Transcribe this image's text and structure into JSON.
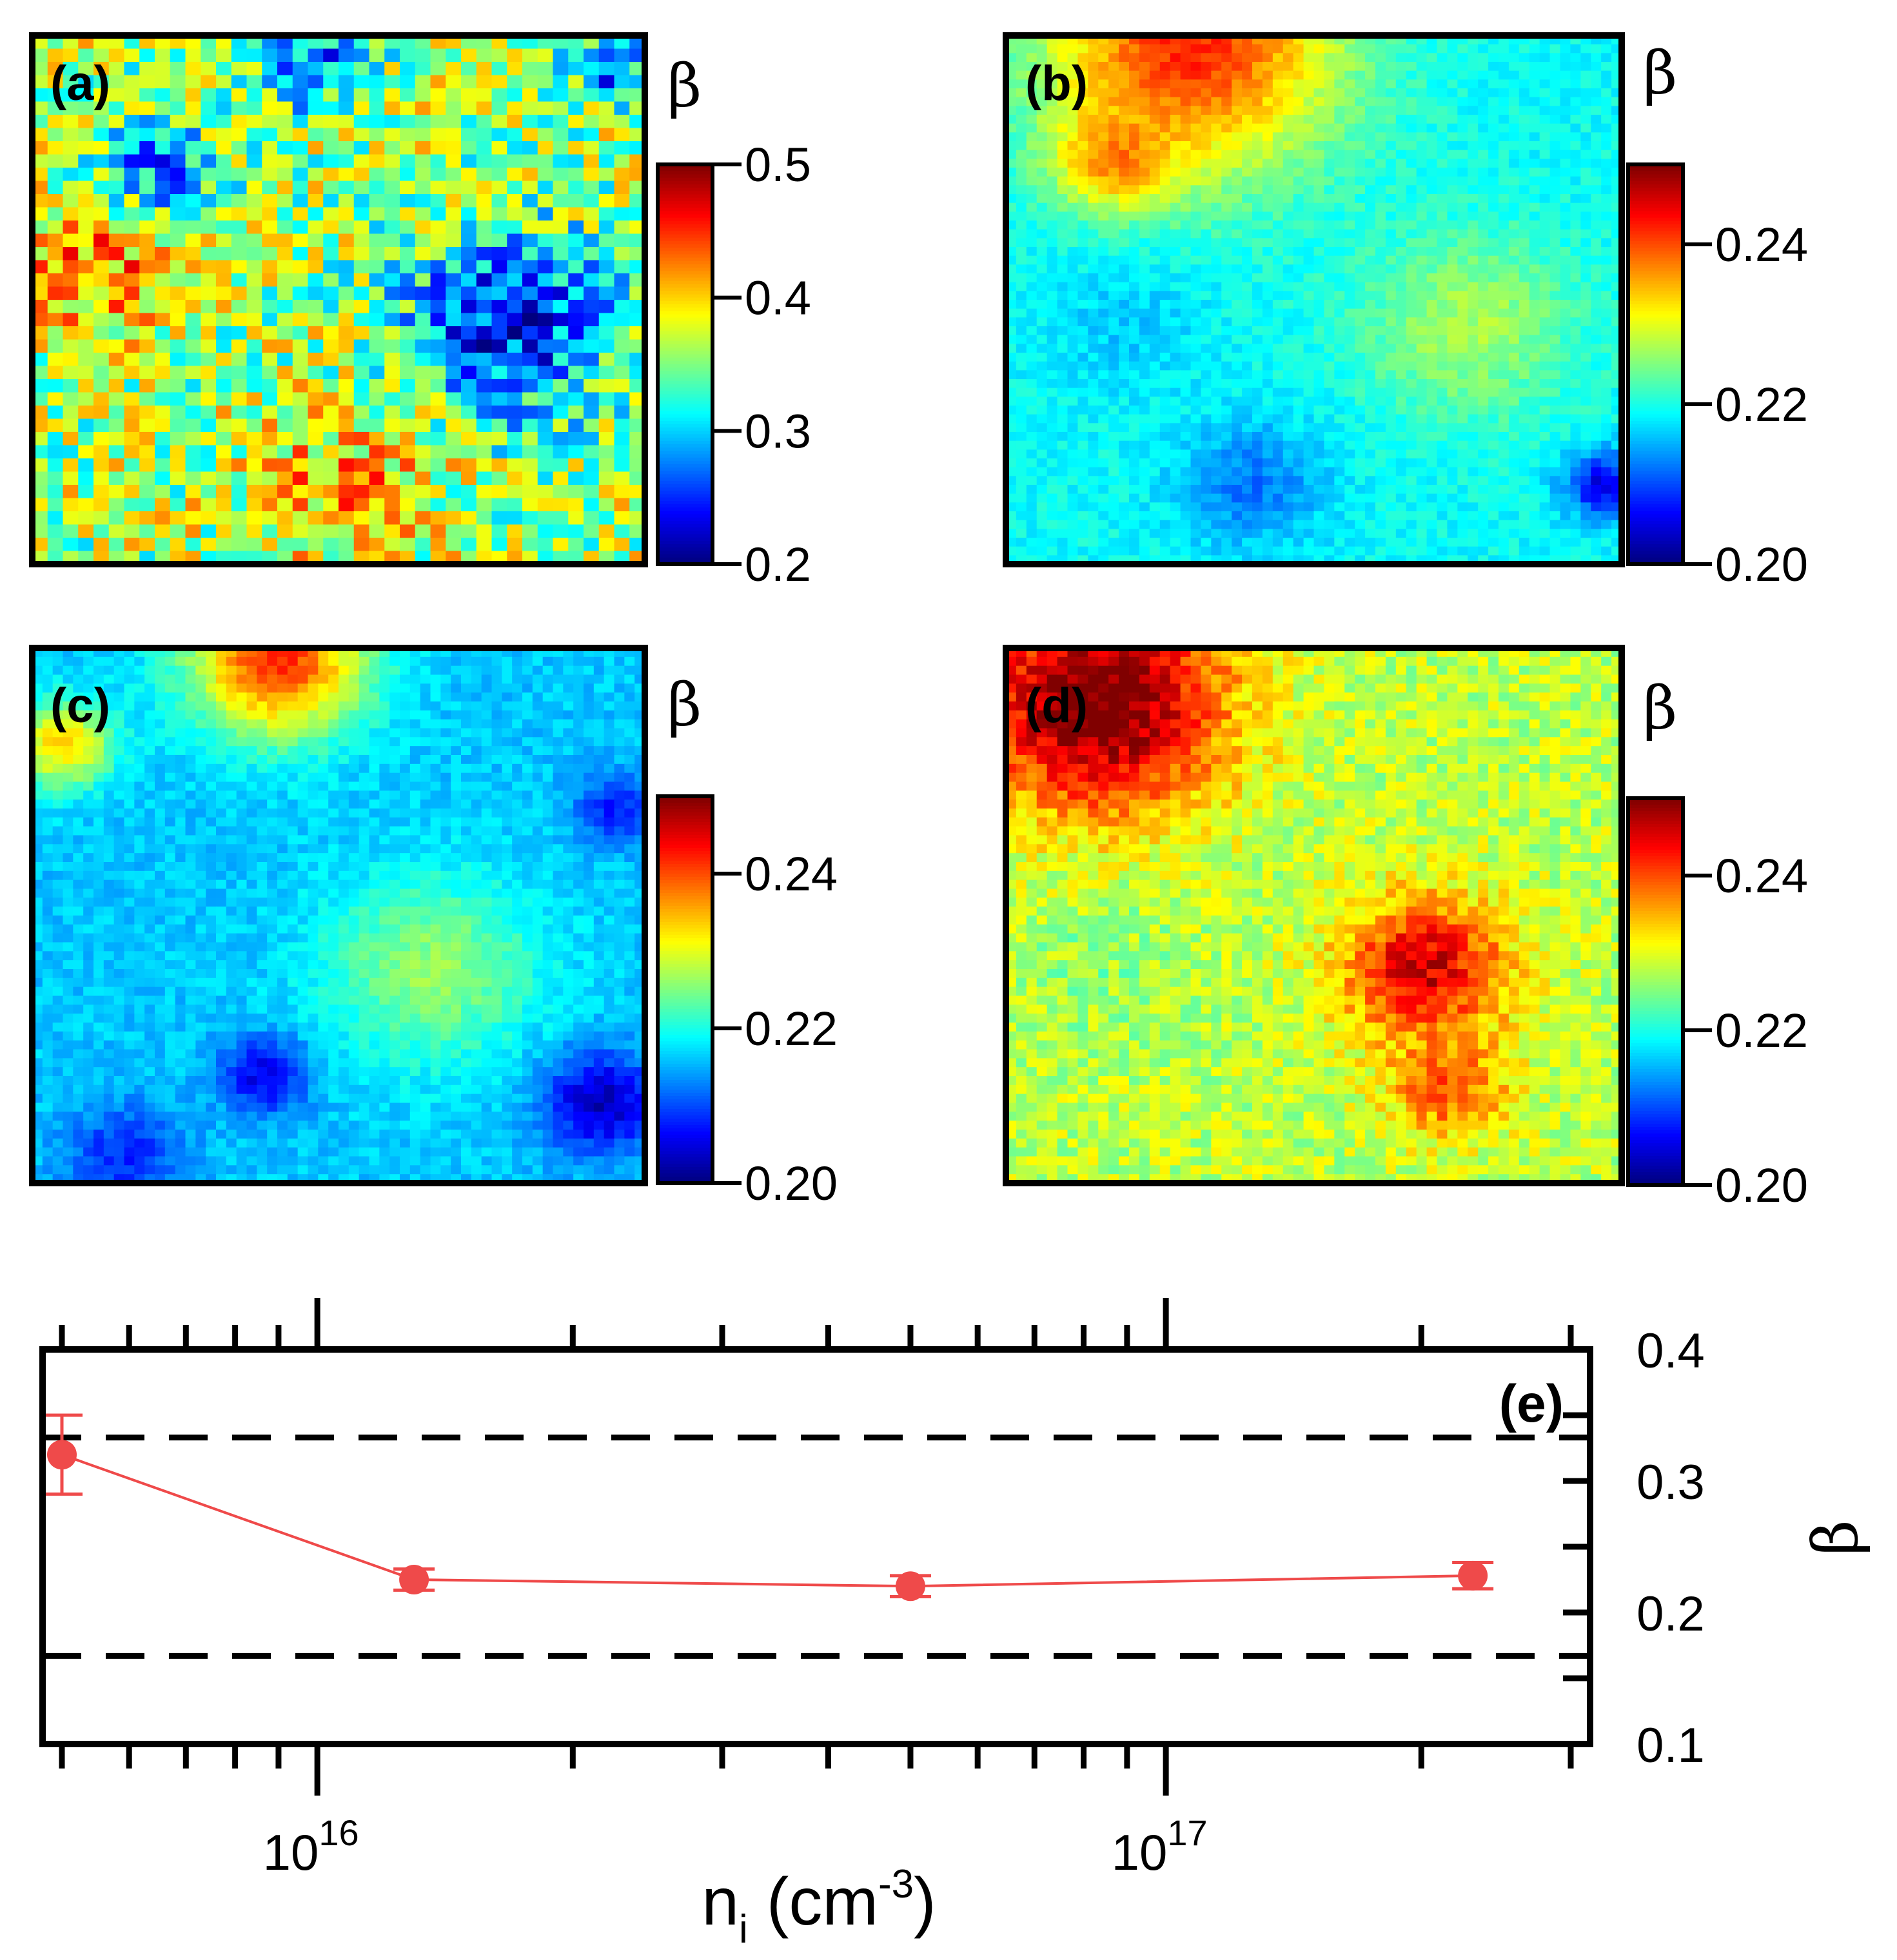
{
  "chart_data": [
    {
      "type": "heatmap",
      "panel": "(a)",
      "colorbar_label": "β",
      "color_range": [
        0.2,
        0.5
      ],
      "colorbar_ticks": [
        "0.5",
        "0.4",
        "0.3",
        "0.2"
      ],
      "tick_values": [
        0.5,
        0.4,
        0.3,
        0.2
      ],
      "grid_size": 40,
      "mean": 0.36,
      "regions": [
        {
          "cx": 0.78,
          "cy": 0.55,
          "r": 0.22,
          "v": 0.24
        },
        {
          "cx": 0.2,
          "cy": 0.25,
          "r": 0.12,
          "v": 0.27
        },
        {
          "cx": 0.45,
          "cy": 0.05,
          "r": 0.12,
          "v": 0.27
        },
        {
          "cx": 0.95,
          "cy": 0.05,
          "r": 0.08,
          "v": 0.25
        },
        {
          "cx": 0.1,
          "cy": 0.45,
          "r": 0.15,
          "v": 0.43
        },
        {
          "cx": 0.5,
          "cy": 0.85,
          "r": 0.2,
          "v": 0.41
        }
      ],
      "noise": 0.06
    },
    {
      "type": "heatmap",
      "panel": "(b)",
      "colorbar_label": "β",
      "color_range": [
        0.2,
        0.25
      ],
      "colorbar_ticks": [
        "0.24",
        "0.22",
        "0.20"
      ],
      "tick_values": [
        0.24,
        0.22,
        0.2
      ],
      "grid_size": 60,
      "mean": 0.219,
      "regions": [
        {
          "cx": 0.3,
          "cy": 0.02,
          "r": 0.3,
          "v": 0.242
        },
        {
          "cx": 0.18,
          "cy": 0.23,
          "r": 0.12,
          "v": 0.238
        },
        {
          "cx": 0.75,
          "cy": 0.55,
          "r": 0.22,
          "v": 0.227
        },
        {
          "cx": 0.4,
          "cy": 0.85,
          "r": 0.15,
          "v": 0.212
        },
        {
          "cx": 0.97,
          "cy": 0.85,
          "r": 0.08,
          "v": 0.205
        },
        {
          "cx": 0.2,
          "cy": 0.55,
          "r": 0.15,
          "v": 0.216
        }
      ],
      "noise": 0.002
    },
    {
      "type": "heatmap",
      "panel": "(c)",
      "colorbar_label": "β",
      "color_range": [
        0.2,
        0.25
      ],
      "colorbar_ticks": [
        "0.24",
        "0.22",
        "0.20"
      ],
      "tick_values": [
        0.24,
        0.22,
        0.2
      ],
      "grid_size": 60,
      "mean": 0.216,
      "regions": [
        {
          "cx": 0.4,
          "cy": 0.02,
          "r": 0.18,
          "v": 0.242
        },
        {
          "cx": 0.05,
          "cy": 0.18,
          "r": 0.1,
          "v": 0.234
        },
        {
          "cx": 0.65,
          "cy": 0.6,
          "r": 0.22,
          "v": 0.226
        },
        {
          "cx": 0.38,
          "cy": 0.8,
          "r": 0.09,
          "v": 0.205
        },
        {
          "cx": 0.93,
          "cy": 0.85,
          "r": 0.12,
          "v": 0.203
        },
        {
          "cx": 0.95,
          "cy": 0.3,
          "r": 0.08,
          "v": 0.207
        },
        {
          "cx": 0.15,
          "cy": 0.95,
          "r": 0.12,
          "v": 0.208
        }
      ],
      "noise": 0.002
    },
    {
      "type": "heatmap",
      "panel": "(d)",
      "colorbar_label": "β",
      "color_range": [
        0.2,
        0.25
      ],
      "colorbar_ticks": [
        "0.24",
        "0.22",
        "0.20"
      ],
      "tick_values": [
        0.24,
        0.22,
        0.2
      ],
      "grid_size": 60,
      "mean": 0.228,
      "regions": [
        {
          "cx": 0.15,
          "cy": 0.1,
          "r": 0.26,
          "v": 0.252
        },
        {
          "cx": 0.68,
          "cy": 0.6,
          "r": 0.17,
          "v": 0.246
        },
        {
          "cx": 0.72,
          "cy": 0.82,
          "r": 0.12,
          "v": 0.24
        },
        {
          "cx": 0.15,
          "cy": 0.6,
          "r": 0.18,
          "v": 0.226
        }
      ],
      "noise": 0.004
    },
    {
      "type": "scatter",
      "panel": "(e)",
      "x_scale": "log",
      "xlim": [
        5000000000000000,
        300000000000000000
      ],
      "ylim": [
        0.1,
        0.4
      ],
      "x": [
        5000000000000000,
        13000000000000000,
        50000000000000000,
        230000000000000000
      ],
      "y": [
        0.32,
        0.225,
        0.22,
        0.228
      ],
      "yerr": [
        0.03,
        0.008,
        0.008,
        0.01
      ],
      "hlines": [
        0.333,
        0.167
      ],
      "y_ticks": [
        "0.4",
        "0.3",
        "0.2",
        "0.1"
      ],
      "y_tick_values": [
        0.4,
        0.3,
        0.2,
        0.1
      ],
      "x_major_ticks": [
        {
          "base": "10",
          "exp": "16",
          "value": 10000000000000000
        },
        {
          "base": "10",
          "exp": "17",
          "value": 100000000000000000
        }
      ],
      "xlabel": {
        "main": "n",
        "sub": "i",
        "unit_pre": " (cm",
        "unit_exp": "-3",
        "unit_post": ")"
      },
      "ylabel": "β",
      "line_color": "#ef4a4a",
      "marker_color": "#ef4a4a"
    }
  ]
}
